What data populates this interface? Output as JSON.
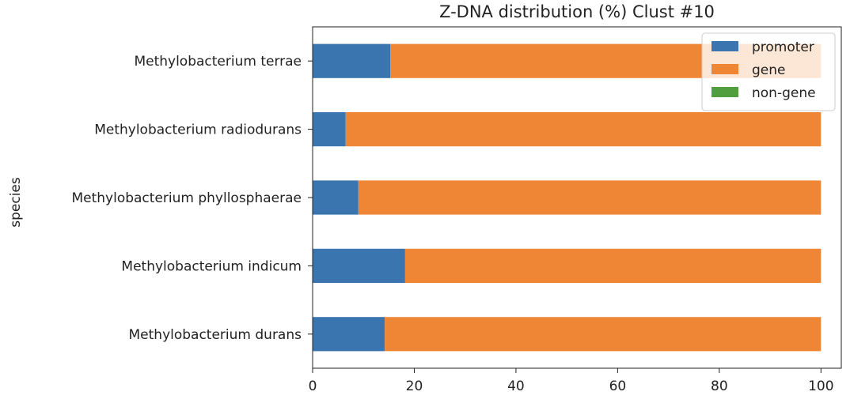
{
  "chart_data": {
    "type": "bar",
    "orientation": "horizontal",
    "stacked": true,
    "title": "Z-DNA distribution (%) Clust #10",
    "xlabel": "",
    "ylabel": "species",
    "xlim": [
      0,
      104
    ],
    "x_ticks": [
      "0",
      "20",
      "40",
      "60",
      "80",
      "100"
    ],
    "categories": [
      "Methylobacterium terrae",
      "Methylobacterium radiodurans",
      "Methylobacterium phyllosphaerae",
      "Methylobacterium indicum",
      "Methylobacterium durans"
    ],
    "series": [
      {
        "name": "promoter",
        "color": "#3a75b0",
        "values": [
          15.3,
          6.5,
          9.0,
          18.2,
          14.2
        ]
      },
      {
        "name": "gene",
        "color": "#ef8636",
        "values": [
          84.7,
          93.5,
          91.0,
          81.8,
          85.8
        ]
      },
      {
        "name": "non-gene",
        "color": "#519e3e",
        "values": [
          0,
          0,
          0,
          0,
          0
        ]
      }
    ],
    "grid": false,
    "legend_position": "top-right"
  }
}
